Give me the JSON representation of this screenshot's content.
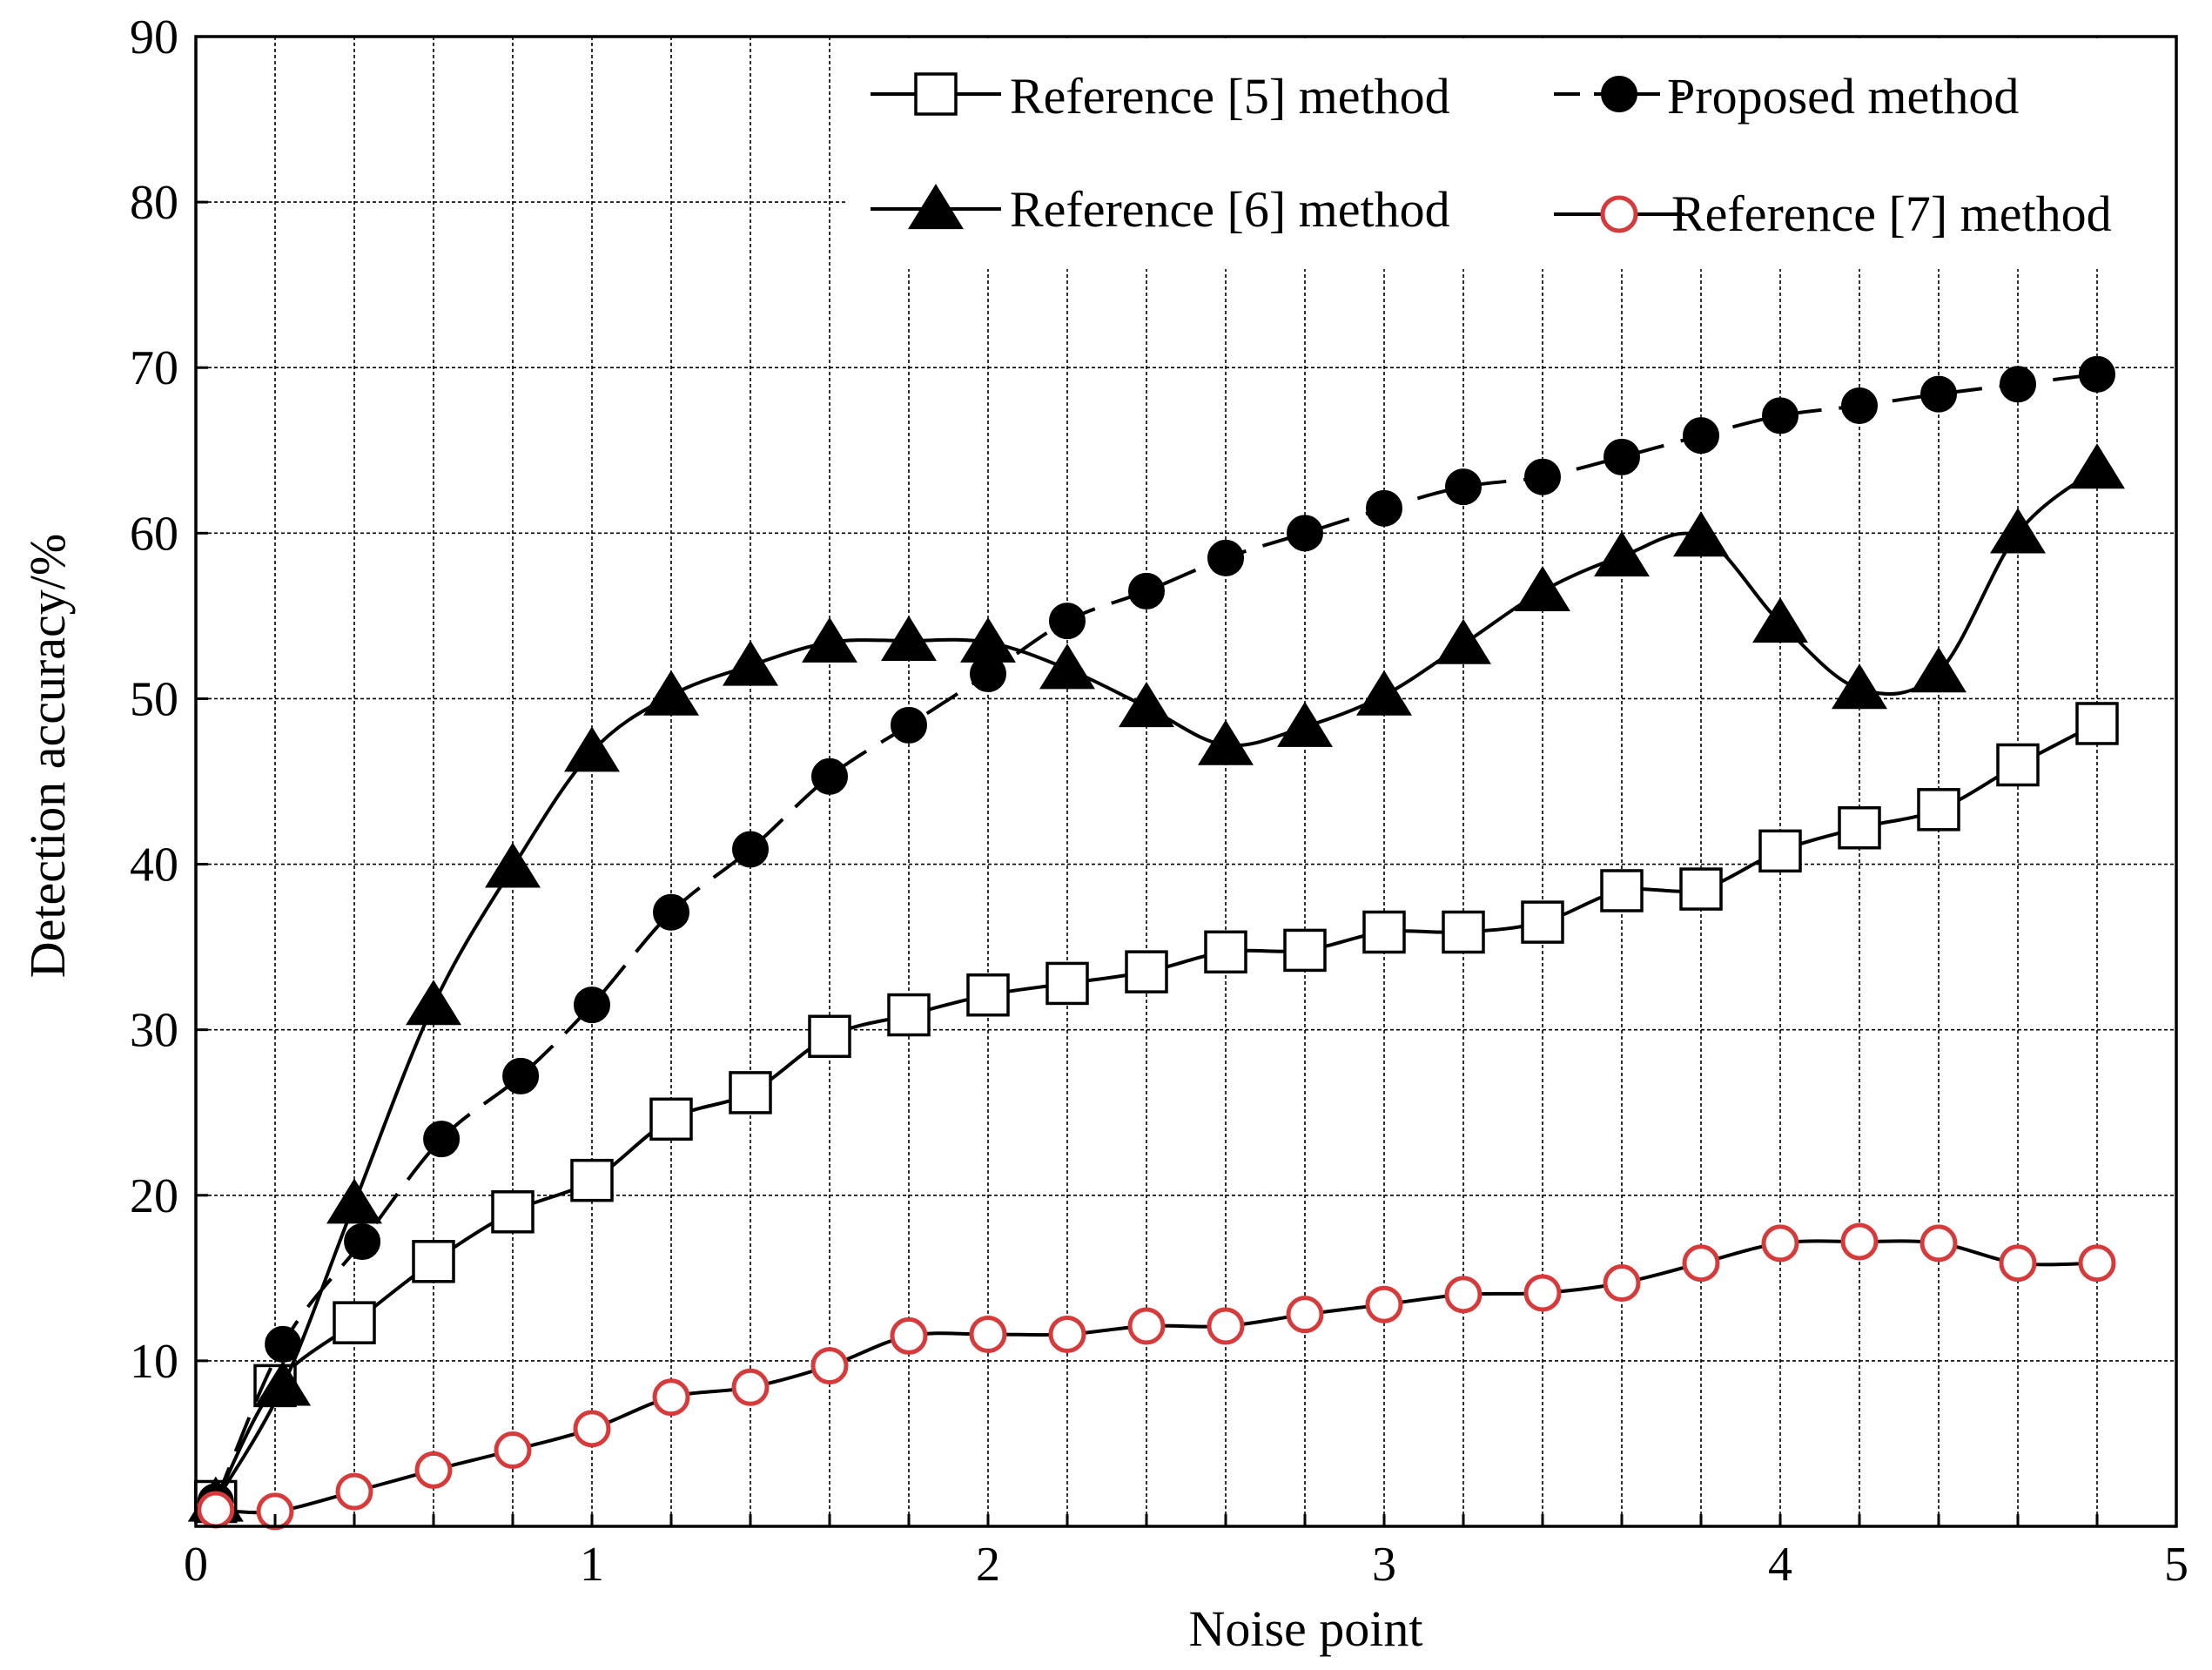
{
  "colors": {
    "black": "#000000",
    "red_marker": "#d63a3a",
    "background": "#ffffff"
  },
  "chart_data": {
    "type": "line",
    "title": "",
    "xlabel": "Noise point",
    "ylabel": "Detection accuracy/%",
    "xlim": [
      0,
      5
    ],
    "ylim": [
      0,
      90
    ],
    "x_ticks": [
      0,
      1,
      2,
      3,
      4,
      5
    ],
    "x_tick_labels": [
      "0",
      "1",
      "2",
      "3",
      "4",
      "5"
    ],
    "x_minor_step": 0.2,
    "y_ticks": [
      10,
      20,
      30,
      40,
      50,
      60,
      70,
      80,
      90
    ],
    "y_tick_labels": [
      "10",
      "20",
      "30",
      "40",
      "50",
      "60",
      "70",
      "80",
      "90"
    ],
    "grid": true,
    "legend_position": "top-right",
    "series": [
      {
        "name": "Reference [5] method",
        "marker": "square-open",
        "line": "solid",
        "x": [
          0.05,
          0.2,
          0.4,
          0.6,
          0.8,
          1.0,
          1.2,
          1.4,
          1.6,
          1.8,
          2.0,
          2.2,
          2.4,
          2.6,
          2.8,
          3.0,
          3.2,
          3.4,
          3.6,
          3.8,
          4.0,
          4.2,
          4.4,
          4.6,
          4.8
        ],
        "y": [
          1.5,
          8.5,
          12.3,
          16,
          19,
          20.9,
          24.6,
          26.2,
          29.6,
          30.9,
          32.1,
          32.8,
          33.5,
          34.7,
          34.8,
          35.9,
          35.9,
          36.5,
          38.4,
          38.5,
          40.8,
          42.2,
          43.3,
          46,
          48.5
        ]
      },
      {
        "name": "Proposed method",
        "marker": "circle-filled",
        "line": "dashed",
        "x": [
          0.05,
          0.22,
          0.42,
          0.62,
          0.82,
          1.0,
          1.2,
          1.4,
          1.6,
          1.8,
          2.0,
          2.2,
          2.4,
          2.6,
          2.8,
          3.0,
          3.2,
          3.4,
          3.6,
          3.8,
          4.0,
          4.2,
          4.4,
          4.6,
          4.8
        ],
        "y": [
          1.5,
          11,
          17.2,
          23.4,
          27.2,
          31.5,
          37.1,
          40.9,
          45.3,
          48.4,
          51.5,
          54.7,
          56.5,
          58.5,
          60,
          61.5,
          62.8,
          63.4,
          64.6,
          65.9,
          67.1,
          67.7,
          68.4,
          69,
          69.6
        ]
      },
      {
        "name": "Reference [6] method",
        "marker": "triangle-filled",
        "line": "solid",
        "x": [
          0.05,
          0.22,
          0.4,
          0.6,
          0.8,
          1.0,
          1.2,
          1.4,
          1.6,
          1.8,
          2.0,
          2.2,
          2.4,
          2.6,
          2.8,
          3.0,
          3.2,
          3.4,
          3.6,
          3.8,
          4.0,
          4.2,
          4.4,
          4.6,
          4.8
        ],
        "y": [
          1.5,
          8.5,
          19.5,
          31.5,
          39.8,
          46.8,
          50.2,
          52,
          53.4,
          53.5,
          53.4,
          51.8,
          49.5,
          47.2,
          48.3,
          50.2,
          53.3,
          56.5,
          58.6,
          59.8,
          54.6,
          50.6,
          51.6,
          60,
          63.9
        ]
      },
      {
        "name": "Reference [7] method",
        "marker": "circle-open-red",
        "line": "solid",
        "x": [
          0.05,
          0.2,
          0.4,
          0.6,
          0.8,
          1.0,
          1.2,
          1.4,
          1.6,
          1.8,
          2.0,
          2.2,
          2.4,
          2.6,
          2.8,
          3.0,
          3.2,
          3.4,
          3.6,
          3.8,
          4.0,
          4.2,
          4.4,
          4.6,
          4.8
        ],
        "y": [
          1.0,
          0.9,
          2.1,
          3.4,
          4.6,
          5.9,
          7.8,
          8.4,
          9.7,
          11.5,
          11.6,
          11.6,
          12.1,
          12.1,
          12.8,
          13.4,
          14.0,
          14.1,
          14.7,
          15.9,
          17.1,
          17.2,
          17.1,
          15.9,
          15.9
        ]
      }
    ]
  }
}
